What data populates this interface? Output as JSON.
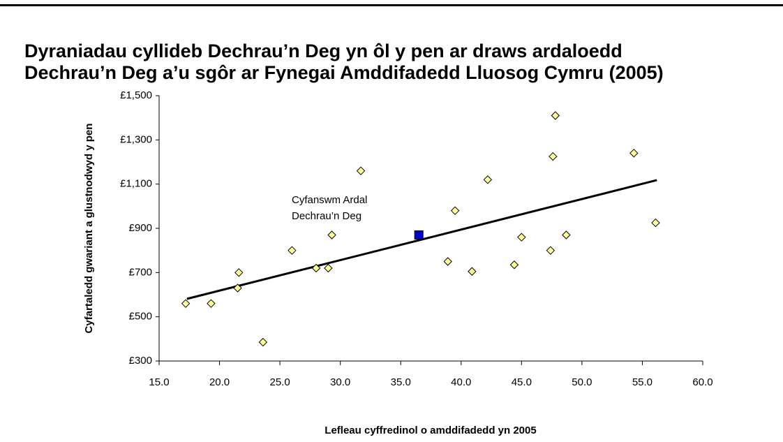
{
  "chart_data": {
    "type": "scatter",
    "title": [
      "Dyraniadau cyllideb Dechrau’n Deg yn ôl y pen ar draws ardaloedd",
      "Dechrau’n Deg a’u sgôr ar Fynegai Amddifadedd Lluosog Cymru (2005)"
    ],
    "x_label": "Lefleau cyffredinol o amddifadedd yn 2005",
    "y_label": "Cyfartaledd gwariant a glustnodwyd y pen",
    "annotation": [
      "Cyfanswm Ardal",
      "Dechrau’n Deg"
    ],
    "series": [
      {
        "color": "#ffff99",
        "marker": "diamond",
        "x": [
          17.2,
          19.3,
          21.5,
          21.6,
          23.6,
          26.0,
          28.0,
          29.0,
          29.3,
          31.7,
          38.9,
          39.5,
          40.9,
          42.2,
          44.4,
          45.0,
          47.4,
          47.6,
          47.8,
          48.7,
          54.3,
          56.1
        ],
        "values": [
          560,
          560,
          630,
          700,
          385,
          800,
          720,
          720,
          870,
          1160,
          750,
          980,
          705,
          1120,
          735,
          860,
          800,
          1225,
          1410,
          870,
          1240,
          925
        ]
      },
      {
        "color": "#0000cc",
        "marker": "square",
        "x": [
          36.5
        ],
        "values": [
          870
        ]
      }
    ],
    "trendline": {
      "x": [
        17.3,
        56.2
      ],
      "values": [
        581,
        1118
      ]
    },
    "xlim": [
      15,
      60
    ],
    "xticks": [
      {
        "value": 15,
        "label": "15.0"
      },
      {
        "value": 20,
        "label": "20.0"
      },
      {
        "value": 25,
        "label": "25.0"
      },
      {
        "value": 30,
        "label": "30.0"
      },
      {
        "value": 35,
        "label": "35.0"
      },
      {
        "value": 40,
        "label": "40.0"
      },
      {
        "value": 45,
        "label": "45.0"
      },
      {
        "value": 50,
        "label": "50.0"
      },
      {
        "value": 55,
        "label": "55.0"
      },
      {
        "value": 60,
        "label": "60.0"
      }
    ],
    "ylim": [
      300,
      1500
    ],
    "yticks": [
      {
        "value": 300,
        "label": "£300"
      },
      {
        "value": 500,
        "label": "£500"
      },
      {
        "value": 700,
        "label": "£700"
      },
      {
        "value": 900,
        "label": "£900"
      },
      {
        "value": 1100,
        "label": "£1,100"
      },
      {
        "value": 1300,
        "label": "£1,300"
      },
      {
        "value": 1500,
        "label": "£1,500"
      }
    ],
    "grid": false
  }
}
